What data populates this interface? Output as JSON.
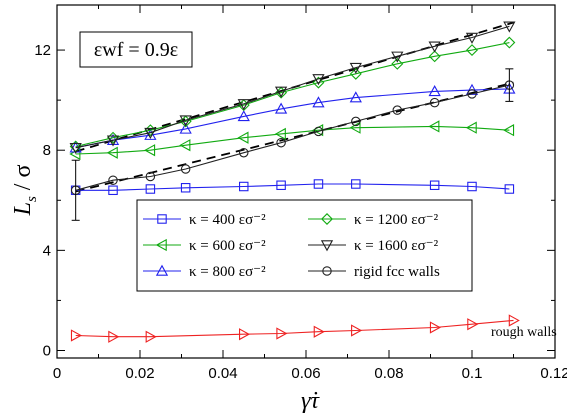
{
  "chart_data": {
    "type": "line",
    "xlabel": "γ̇τ",
    "ylabel": "L_s / σ",
    "xlim": [
      0,
      0.12
    ],
    "ylim": [
      -0.3,
      13.8
    ],
    "xticks": [
      "0",
      "0.02",
      "0.04",
      "0.06",
      "0.08",
      "0.1",
      "0.12"
    ],
    "xtick_values": [
      0,
      0.02,
      0.04,
      0.06,
      0.08,
      0.1,
      0.12
    ],
    "yticks": [
      "0",
      "4",
      "8",
      "12"
    ],
    "ytick_values": [
      0,
      4,
      8,
      12
    ],
    "annotation_box": "εwf = 0.9ε",
    "annotation_text": "rough walls",
    "legend_position": "bottom-center inside",
    "series": [
      {
        "name": "κ = 400 εσ⁻²",
        "color": "#2222ee",
        "marker": "square",
        "x": [
          0.0045,
          0.0135,
          0.0225,
          0.031,
          0.045,
          0.054,
          0.063,
          0.072,
          0.091,
          0.1,
          0.109
        ],
        "y": [
          6.4,
          6.4,
          6.45,
          6.5,
          6.55,
          6.6,
          6.65,
          6.65,
          6.6,
          6.55,
          6.45
        ]
      },
      {
        "name": "κ = 600 εσ⁻²",
        "color": "#11aa11",
        "marker": "triangle-left",
        "x": [
          0.0045,
          0.0135,
          0.0225,
          0.031,
          0.045,
          0.054,
          0.063,
          0.072,
          0.091,
          0.1,
          0.109
        ],
        "y": [
          7.85,
          7.9,
          8.0,
          8.2,
          8.5,
          8.65,
          8.8,
          8.9,
          8.95,
          8.9,
          8.8
        ]
      },
      {
        "name": "κ = 800 εσ⁻²",
        "color": "#2222ee",
        "marker": "triangle-up",
        "x": [
          0.0045,
          0.0135,
          0.0225,
          0.031,
          0.045,
          0.054,
          0.063,
          0.072,
          0.091,
          0.1,
          0.109
        ],
        "y": [
          8.1,
          8.4,
          8.6,
          8.85,
          9.35,
          9.65,
          9.9,
          10.1,
          10.35,
          10.4,
          10.45
        ]
      },
      {
        "name": "κ = 1200 εσ⁻²",
        "color": "#11aa11",
        "marker": "diamond",
        "x": [
          0.0045,
          0.0135,
          0.0225,
          0.031,
          0.045,
          0.054,
          0.063,
          0.072,
          0.082,
          0.091,
          0.1,
          0.109
        ],
        "y": [
          8.15,
          8.5,
          8.8,
          9.15,
          9.8,
          10.3,
          10.7,
          11.05,
          11.45,
          11.75,
          12.0,
          12.3
        ]
      },
      {
        "name": "κ = 1600 εσ⁻²",
        "color": "#222222",
        "marker": "triangle-down",
        "x": [
          0.0045,
          0.0135,
          0.0225,
          0.031,
          0.045,
          0.054,
          0.063,
          0.072,
          0.082,
          0.091,
          0.1,
          0.109
        ],
        "y": [
          8.1,
          8.4,
          8.7,
          9.2,
          9.85,
          10.35,
          10.85,
          11.3,
          11.75,
          12.15,
          12.5,
          12.95
        ]
      },
      {
        "name": "rigid fcc walls",
        "color": "#222222",
        "marker": "circle",
        "x": [
          0.0045,
          0.0135,
          0.0225,
          0.031,
          0.045,
          0.054,
          0.063,
          0.072,
          0.082,
          0.091,
          0.1,
          0.109
        ],
        "y": [
          6.4,
          6.8,
          6.95,
          7.25,
          7.9,
          8.3,
          8.75,
          9.15,
          9.6,
          9.9,
          10.25,
          10.6
        ]
      },
      {
        "name": "rough walls",
        "color": "#ee2222",
        "marker": "triangle-right",
        "x": [
          0.0045,
          0.0135,
          0.0225,
          0.045,
          0.054,
          0.063,
          0.072,
          0.091,
          0.1,
          0.11
        ],
        "y": [
          0.6,
          0.55,
          0.55,
          0.65,
          0.68,
          0.75,
          0.8,
          0.92,
          1.05,
          1.2
        ]
      }
    ],
    "fit_lines": [
      {
        "x": [
          0.0045,
          0.11
        ],
        "y": [
          7.95,
          13.1
        ]
      },
      {
        "x": [
          0.0045,
          0.11
        ],
        "y": [
          6.35,
          10.7
        ]
      }
    ],
    "error_bars": [
      {
        "x": 0.0045,
        "y": 6.4,
        "yerr": 1.2
      },
      {
        "x": 0.109,
        "y": 10.6,
        "yerr": 0.65
      }
    ]
  }
}
